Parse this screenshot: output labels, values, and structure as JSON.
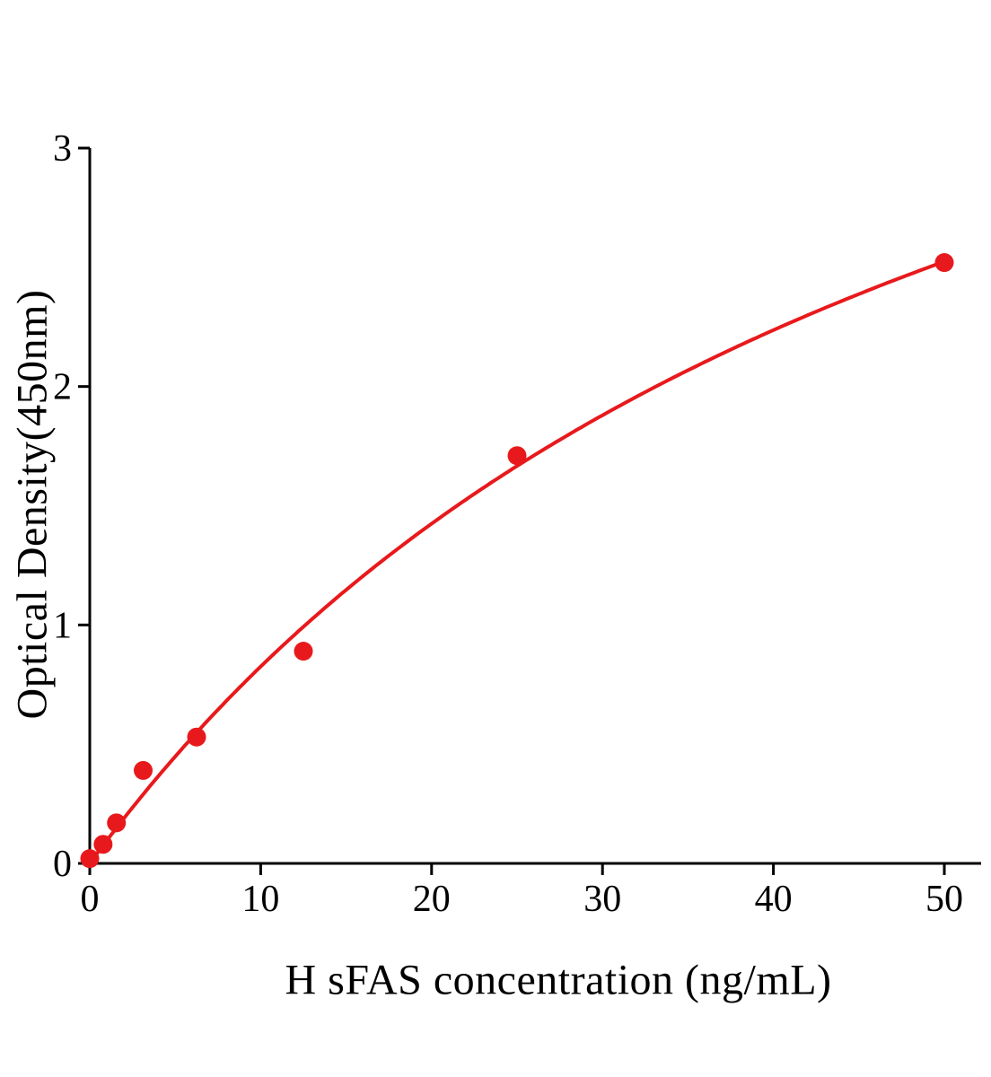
{
  "chart_data": {
    "type": "scatter",
    "title": "",
    "xlabel": "H sFAS concentration (ng/mL)",
    "ylabel": "Optical Density(450nm)",
    "xlim": [
      0,
      50
    ],
    "ylim": [
      0,
      3
    ],
    "xticks": [
      0,
      10,
      20,
      30,
      40,
      50
    ],
    "yticks": [
      0,
      1,
      2,
      3
    ],
    "grid": false,
    "legend": null,
    "marker_color": "#e8191c",
    "line_color": "#e8191c",
    "axis_color": "#000000",
    "points": [
      {
        "x": 0,
        "y": 0.02
      },
      {
        "x": 0.78,
        "y": 0.08
      },
      {
        "x": 1.56,
        "y": 0.17
      },
      {
        "x": 3.125,
        "y": 0.39
      },
      {
        "x": 6.25,
        "y": 0.53
      },
      {
        "x": 12.5,
        "y": 0.89
      },
      {
        "x": 25,
        "y": 1.71
      },
      {
        "x": 50,
        "y": 2.52
      }
    ],
    "fit_curve": {
      "type": "saturation",
      "formula": "y = a*x/(b+x)",
      "a": 5.2,
      "b": 53
    }
  }
}
